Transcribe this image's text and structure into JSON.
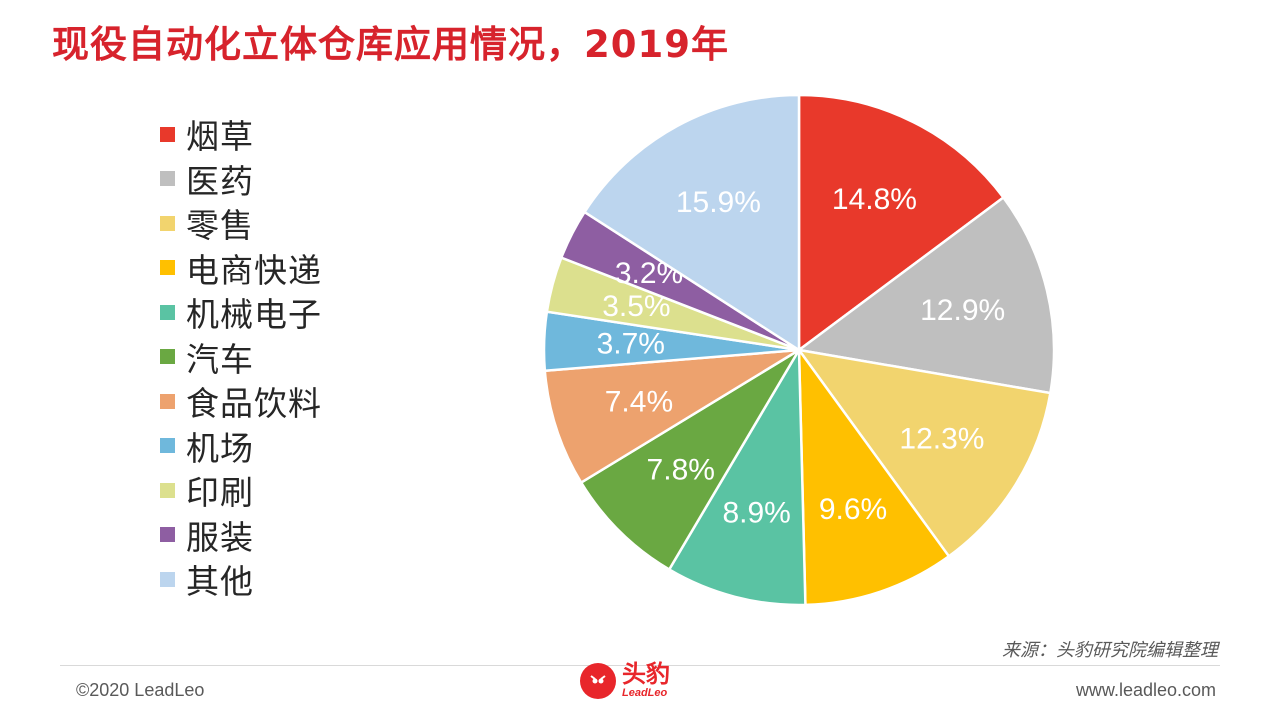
{
  "title": "现役自动化立体仓库应用情况，2019年",
  "source": "来源：头豹研究院编辑整理",
  "footer": {
    "copyright": "©2020 LeadLeo",
    "website": "www.leadleo.com",
    "logo_cn": "头豹",
    "logo_en": "LeadLeo"
  },
  "chart_data": {
    "type": "pie",
    "start": "12 o'clock",
    "direction": "clockwise",
    "legend_position": "left",
    "slices": [
      {
        "name": "烟草",
        "value": 14.8,
        "label": "14.8%",
        "color": "#e8392b"
      },
      {
        "name": "医药",
        "value": 12.9,
        "label": "12.9%",
        "color": "#bfbfbf"
      },
      {
        "name": "零售",
        "value": 12.3,
        "label": "12.3%",
        "color": "#f2d46e"
      },
      {
        "name": "电商快递",
        "value": 9.6,
        "label": "9.6%",
        "color": "#ffc000"
      },
      {
        "name": "机械电子",
        "value": 8.9,
        "label": "8.9%",
        "color": "#5ac3a3"
      },
      {
        "name": "汽车",
        "value": 7.8,
        "label": "7.8%",
        "color": "#6aa842"
      },
      {
        "name": "食品饮料",
        "value": 7.4,
        "label": "7.4%",
        "color": "#eda26e"
      },
      {
        "name": "机场",
        "value": 3.7,
        "label": "3.7%",
        "color": "#6fb8dc"
      },
      {
        "name": "印刷",
        "value": 3.5,
        "label": "3.5%",
        "color": "#dce08e"
      },
      {
        "name": "服装",
        "value": 3.2,
        "label": "3.2%",
        "color": "#8e5ea2"
      },
      {
        "name": "其他",
        "value": 15.9,
        "label": "15.9%",
        "color": "#bcd5ee"
      }
    ]
  }
}
